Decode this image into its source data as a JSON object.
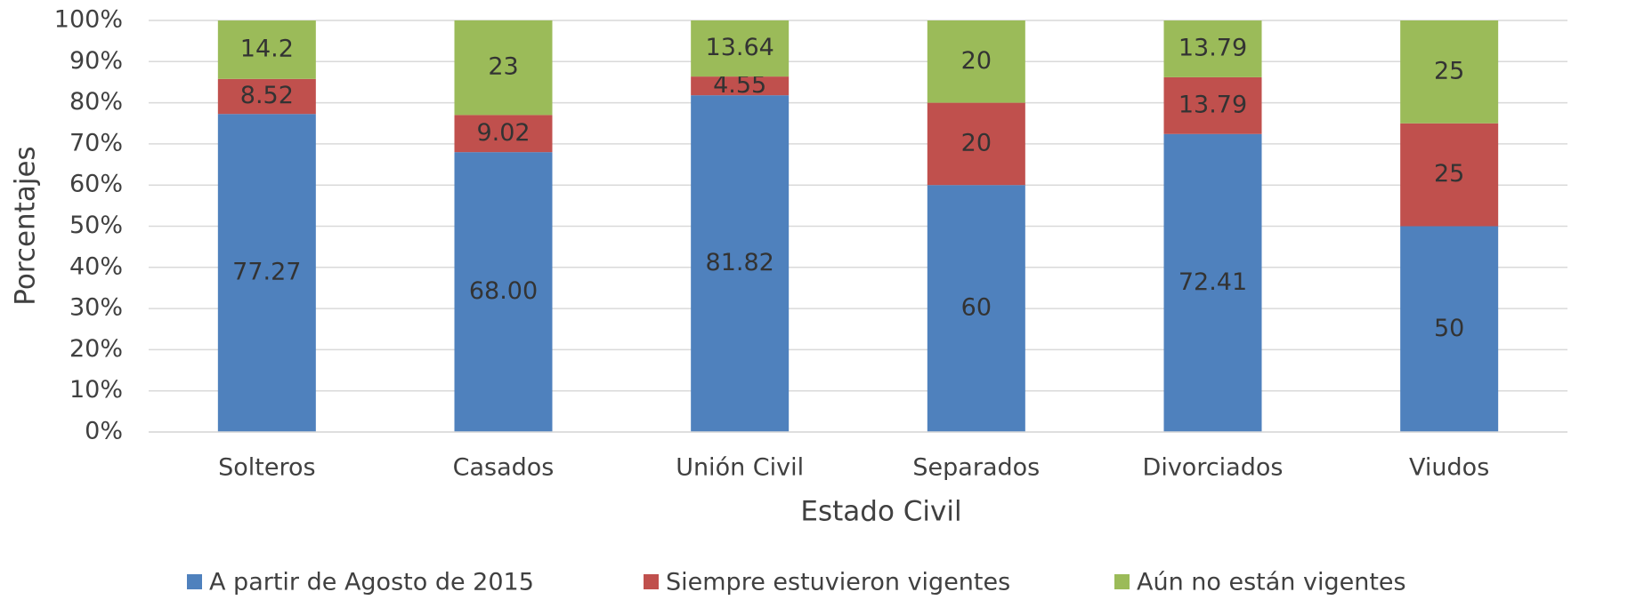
{
  "chart_data": {
    "type": "stacked_bar",
    "x_label": "Estado Civil",
    "y_label": "Porcentajes",
    "categories": [
      "Solteros",
      "Casados",
      "Unión Civil",
      "Separados",
      "Divorciados",
      "Viudos"
    ],
    "series": [
      {
        "name": "A partir de Agosto de 2015",
        "color": "#4f81bd",
        "values": [
          77.27,
          68,
          81.82,
          60,
          72.41,
          50
        ],
        "value_labels": [
          "77.27",
          "68.00",
          "81.82",
          "60",
          "72.41",
          "50"
        ]
      },
      {
        "name": "Siempre estuvieron vigentes",
        "color": "#c0504d",
        "values": [
          8.52,
          9.02,
          4.55,
          20,
          13.79,
          25
        ]
      },
      {
        "name": "Aún no están vigentes",
        "color": "#9bbb59",
        "values": [
          14.2,
          23,
          13.64,
          20,
          13.79,
          25
        ]
      }
    ],
    "ylim": [
      0,
      100
    ],
    "yticks": [
      {
        "value": 0,
        "label": "0%"
      },
      {
        "value": 10,
        "label": "10%"
      },
      {
        "value": 20,
        "label": "20%"
      },
      {
        "value": 30,
        "label": "30%"
      },
      {
        "value": 40,
        "label": "40%"
      },
      {
        "value": 50,
        "label": "50%"
      },
      {
        "value": 60,
        "label": "60%"
      },
      {
        "value": 70,
        "label": "70%"
      },
      {
        "value": 80,
        "label": "80%"
      },
      {
        "value": 90,
        "label": "90%"
      },
      {
        "value": 100,
        "label": "100%"
      }
    ],
    "grid": true,
    "legend": "bottom"
  }
}
